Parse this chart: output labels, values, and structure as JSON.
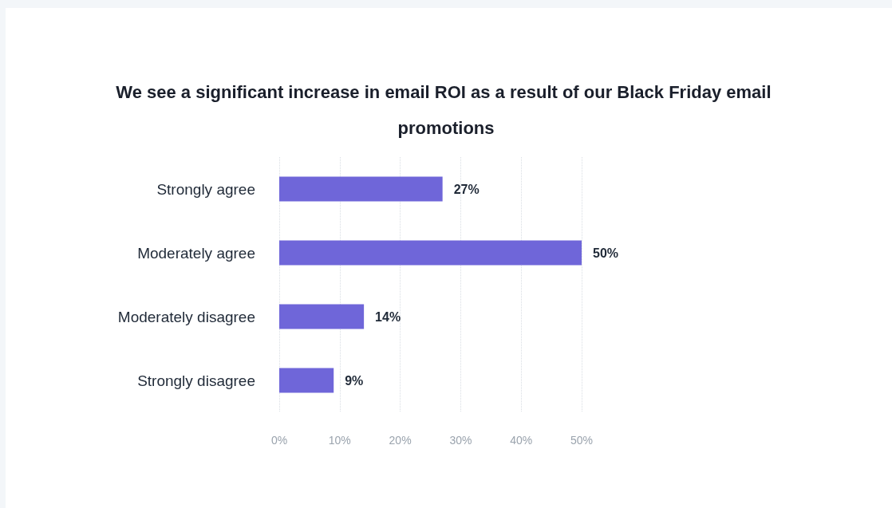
{
  "chart_data": {
    "type": "bar",
    "orientation": "horizontal",
    "title": "We see a significant increase in email ROI as a result of our Black Friday email promotions",
    "categories": [
      "Strongly agree",
      "Moderately agree",
      "Moderately disagree",
      "Strongly disagree"
    ],
    "values": [
      27,
      50,
      14,
      9
    ],
    "color": "#6f66d9",
    "value_labels": [
      "27%",
      "50%",
      "14%",
      "9%"
    ],
    "xlim": [
      0,
      50
    ],
    "xticks": [
      {
        "value": 0,
        "label": "0%"
      },
      {
        "value": 10,
        "label": "10%"
      },
      {
        "value": 20,
        "label": "20%"
      },
      {
        "value": 30,
        "label": "30%"
      },
      {
        "value": 40,
        "label": "40%"
      },
      {
        "value": 50,
        "label": "50%"
      }
    ],
    "grid": "x"
  }
}
